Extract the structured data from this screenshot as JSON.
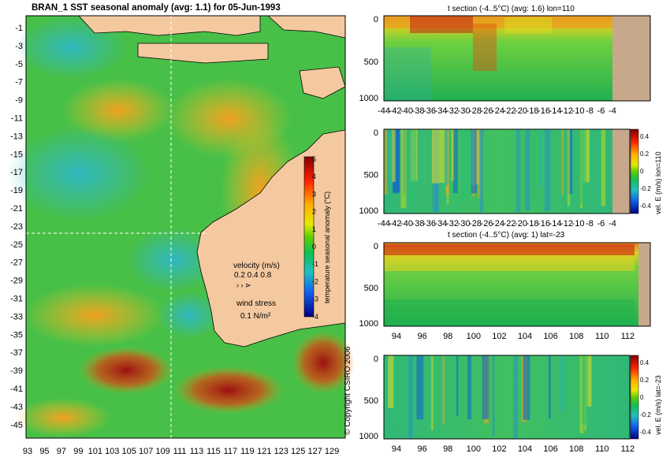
{
  "main_map": {
    "title": "BRAN_1  SST seasonal anomaly  (avg: 1.1) for 05-Jun-1993",
    "y_ticks": [
      "-1",
      "-3",
      "-5",
      "-7",
      "-9",
      "-11",
      "-13",
      "-15",
      "-17",
      "-19",
      "-21",
      "-23",
      "-25",
      "-27",
      "-29",
      "-31",
      "-33",
      "-35",
      "-37",
      "-39",
      "-41",
      "-43",
      "-45"
    ],
    "x_ticks": [
      "93",
      "95",
      "97",
      "99",
      "101",
      "103",
      "105",
      "107",
      "109",
      "111",
      "113",
      "115",
      "117",
      "119",
      "121",
      "123",
      "125",
      "127",
      "129"
    ],
    "colorbar": {
      "label": "temperature seasonal anomaly (°C)",
      "ticks": [
        "5",
        "4",
        "3",
        "2",
        "1",
        "0",
        "-1",
        "-2",
        "-3",
        "-4"
      ]
    },
    "velocity_legend": {
      "title": "velocity (m/s)",
      "values": "0.2 0.4 0.8"
    },
    "wind_legend": {
      "title": "wind stress",
      "value": "0.1 N/m²"
    },
    "copyright": "© Copyright CSIRO 2006"
  },
  "panels": [
    {
      "title": "t section (-4..5°C)  (avg: 1.6) lon=110",
      "y_ticks": [
        "0",
        "500",
        "1000"
      ],
      "x_ticks": [
        "-44",
        "-42",
        "-40",
        "-38",
        "-36",
        "-34",
        "-32",
        "-30",
        "-28",
        "-26",
        "-24",
        "-22",
        "-20",
        "-18",
        "-16",
        "-14",
        "-12",
        "-10",
        "-8",
        "-6",
        "-4"
      ]
    },
    {
      "title": "",
      "y_ticks": [
        "0",
        "500",
        "1000"
      ],
      "x_ticks": [
        "-44",
        "-42",
        "-40",
        "-38",
        "-36",
        "-34",
        "-32",
        "-30",
        "-28",
        "-26",
        "-24",
        "-22",
        "-20",
        "-18",
        "-16",
        "-14",
        "-12",
        "-10",
        "-8",
        "-6",
        "-4"
      ],
      "colorbar_label": "vel. E (m/s) lon=110",
      "colorbar_ticks": [
        "0.4",
        "0.2",
        "0",
        "-0.2",
        "-0.4"
      ]
    },
    {
      "title": "t section (-4..5°C)  (avg: 1) lat=-23",
      "y_ticks": [
        "0",
        "500",
        "1000"
      ],
      "x_ticks": [
        "94",
        "96",
        "98",
        "100",
        "102",
        "104",
        "106",
        "108",
        "110",
        "112"
      ]
    },
    {
      "title": "",
      "y_ticks": [
        "0",
        "500",
        "1000"
      ],
      "x_ticks": [
        "94",
        "96",
        "98",
        "100",
        "102",
        "104",
        "106",
        "108",
        "110",
        "112"
      ],
      "colorbar_label": "vel. E (m/s) lat=-23",
      "colorbar_ticks": [
        "0.4",
        "0.2",
        "0",
        "-0.2",
        "-0.4"
      ]
    }
  ]
}
